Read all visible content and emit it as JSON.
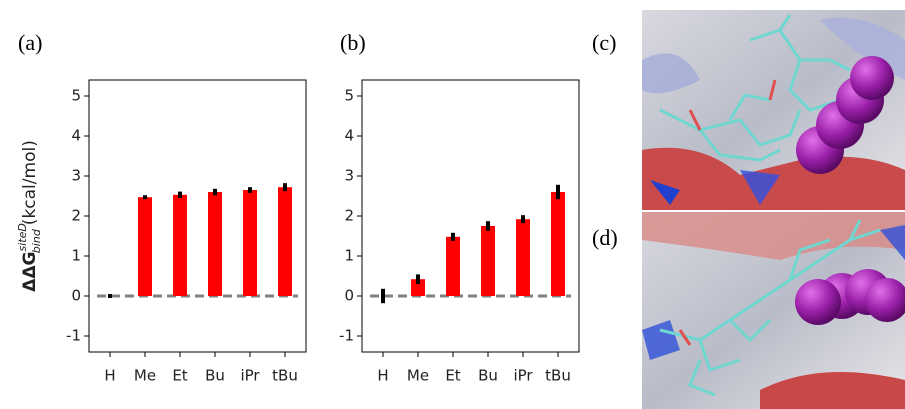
{
  "chart_data": [
    {
      "type": "bar",
      "panel_label": "(a)",
      "ylabel": {
        "main": "ΔΔG",
        "sup": "siteD",
        "sub": "bind",
        "unit": "(kcal/mol)"
      },
      "categories": [
        "H",
        "Me",
        "Et",
        "Bu",
        "iPr",
        "tBu"
      ],
      "values": [
        0,
        2.47,
        2.53,
        2.6,
        2.65,
        2.72
      ],
      "errors": [
        0.05,
        0.05,
        0.08,
        0.08,
        0.07,
        0.1
      ],
      "color": "#ff0000",
      "error_color": "#000000",
      "ylim": [
        -1.4,
        5.4
      ],
      "yticks": [
        -1,
        0,
        1,
        2,
        3,
        4,
        5
      ]
    },
    {
      "type": "bar",
      "panel_label": "(b)",
      "categories": [
        "H",
        "Me",
        "Et",
        "Bu",
        "iPr",
        "tBu"
      ],
      "values": [
        0,
        0.42,
        1.48,
        1.75,
        1.92,
        2.6
      ],
      "errors": [
        0.18,
        0.12,
        0.1,
        0.12,
        0.1,
        0.18
      ],
      "color": "#ff0000",
      "error_color": "#000000",
      "ylim": [
        -1.4,
        5.4
      ],
      "yticks": [
        -1,
        0,
        1,
        2,
        3,
        4,
        5
      ]
    }
  ],
  "images": [
    {
      "label": "(c)"
    },
    {
      "label": "(d)"
    }
  ]
}
